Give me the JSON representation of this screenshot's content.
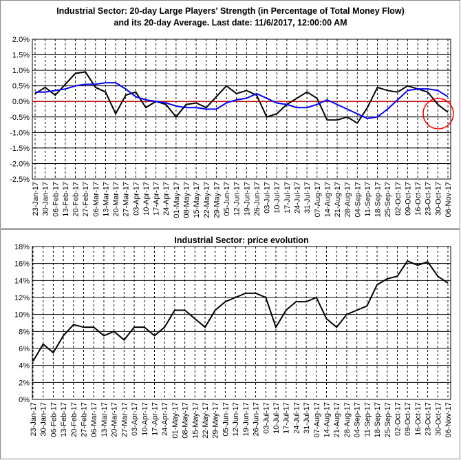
{
  "chart_data": [
    {
      "type": "line",
      "title": "Industrial Sector: 20-day Large Players' Strength (in Percentage of Total Money Flow) and its 20-day Average. Last date: 11/6/2017, 12:00:00 AM",
      "categories": [
        "23-Jan-17",
        "30-Jan-17",
        "06-Feb-17",
        "13-Feb-17",
        "20-Feb-17",
        "27-Feb-17",
        "06-Mar-17",
        "13-Mar-17",
        "20-Mar-17",
        "27-Mar-17",
        "03-Apr-17",
        "10-Apr-17",
        "17-Apr-17",
        "24-Apr-17",
        "01-May-17",
        "08-May-17",
        "15-May-17",
        "22-May-17",
        "29-May-17",
        "05-Jun-17",
        "12-Jun-17",
        "19-Jun-17",
        "26-Jun-17",
        "03-Jul-17",
        "10-Jul-17",
        "17-Jul-17",
        "24-Jul-17",
        "31-Jul-17",
        "07-Aug-17",
        "14-Aug-17",
        "21-Aug-17",
        "28-Aug-17",
        "04-Sep-17",
        "11-Sep-17",
        "18-Sep-17",
        "25-Sep-17",
        "02-Oct-17",
        "09-Oct-17",
        "16-Oct-17",
        "23-Oct-17",
        "30-Oct-17",
        "06-Nov-17"
      ],
      "series": [
        {
          "color": "#000000",
          "values": [
            0.25,
            0.45,
            0.2,
            0.55,
            0.9,
            0.95,
            0.45,
            0.3,
            -0.4,
            0.2,
            0.3,
            -0.2,
            0.0,
            -0.1,
            -0.5,
            -0.1,
            -0.05,
            -0.2,
            0.15,
            0.5,
            0.25,
            0.35,
            0.2,
            -0.5,
            -0.4,
            -0.1,
            0.1,
            0.3,
            0.1,
            -0.6,
            -0.6,
            -0.5,
            -0.7,
            -0.2,
            0.45,
            0.35,
            0.3,
            0.5,
            0.4,
            0.3,
            -0.1,
            -0.35
          ]
        },
        {
          "color": "#0000ff",
          "values": [
            0.3,
            0.3,
            0.35,
            0.4,
            0.5,
            0.55,
            0.55,
            0.6,
            0.6,
            0.4,
            0.15,
            0.05,
            0.0,
            -0.05,
            -0.15,
            -0.2,
            -0.2,
            -0.25,
            -0.25,
            -0.05,
            0.05,
            0.1,
            0.25,
            0.1,
            -0.05,
            -0.1,
            -0.2,
            -0.2,
            -0.1,
            0.05,
            -0.1,
            -0.25,
            -0.4,
            -0.55,
            -0.5,
            -0.25,
            0.05,
            0.35,
            0.4,
            0.4,
            0.35,
            0.15
          ]
        }
      ],
      "hline": {
        "value": 0,
        "color": "#ff0000"
      },
      "ylim": [
        -2.5,
        2.0
      ],
      "yticks": [
        {
          "value": 2.0,
          "label": "2.0%"
        },
        {
          "value": 1.5,
          "label": "1.5%"
        },
        {
          "value": 1.0,
          "label": "1.0%"
        },
        {
          "value": 0.5,
          "label": "0.5%"
        },
        {
          "value": 0.0,
          "label": "0.0%"
        },
        {
          "value": -0.5,
          "label": "-0.5%"
        },
        {
          "value": -1.0,
          "label": "-1.0%"
        },
        {
          "value": -1.5,
          "label": "-1.5%"
        },
        {
          "value": -2.0,
          "label": "-2.0%"
        },
        {
          "value": -2.5,
          "label": "-2.5%"
        }
      ],
      "grid": true
    },
    {
      "type": "line",
      "title": "Industrial Sector: price evolution",
      "categories": [
        "23-Jan-17",
        "30-Jan-17",
        "06-Feb-17",
        "13-Feb-17",
        "20-Feb-17",
        "27-Feb-17",
        "06-Mar-17",
        "13-Mar-17",
        "20-Mar-17",
        "27-Mar-17",
        "03-Apr-17",
        "10-Apr-17",
        "17-Apr-17",
        "24-Apr-17",
        "01-May-17",
        "08-May-17",
        "15-May-17",
        "22-May-17",
        "29-May-17",
        "05-Jun-17",
        "12-Jun-17",
        "19-Jun-17",
        "26-Jun-17",
        "03-Jul-17",
        "10-Jul-17",
        "17-Jul-17",
        "24-Jul-17",
        "31-Jul-17",
        "07-Aug-17",
        "14-Aug-17",
        "21-Aug-17",
        "28-Aug-17",
        "04-Sep-17",
        "11-Sep-17",
        "18-Sep-17",
        "25-Sep-17",
        "02-Oct-17",
        "09-Oct-17",
        "16-Oct-17",
        "23-Oct-17",
        "30-Oct-17",
        "06-Nov-17"
      ],
      "series": [
        {
          "color": "#000000",
          "values": [
            4.5,
            6.5,
            5.5,
            7.5,
            8.8,
            8.5,
            8.5,
            7.5,
            8.0,
            7.0,
            8.5,
            8.5,
            7.5,
            8.5,
            10.5,
            10.5,
            9.5,
            8.5,
            10.5,
            11.5,
            12,
            12.5,
            12.5,
            12,
            8.5,
            10.5,
            11.5,
            11.5,
            12,
            9.5,
            8.5,
            10,
            10.5,
            11,
            13.5,
            14.2,
            14.5,
            16.3,
            15.8,
            16.2,
            14.5,
            13.7
          ]
        }
      ],
      "ylim": [
        0,
        18
      ],
      "yticks": [
        {
          "value": 0,
          "label": "0%"
        },
        {
          "value": 2,
          "label": "2%"
        },
        {
          "value": 4,
          "label": "4%"
        },
        {
          "value": 6,
          "label": "6%"
        },
        {
          "value": 8,
          "label": "8%"
        },
        {
          "value": 10,
          "label": "10%"
        },
        {
          "value": 12,
          "label": "12%"
        },
        {
          "value": 14,
          "label": "14%"
        },
        {
          "value": 16,
          "label": "16%"
        },
        {
          "value": 18,
          "label": "18%"
        }
      ],
      "grid": true
    }
  ]
}
